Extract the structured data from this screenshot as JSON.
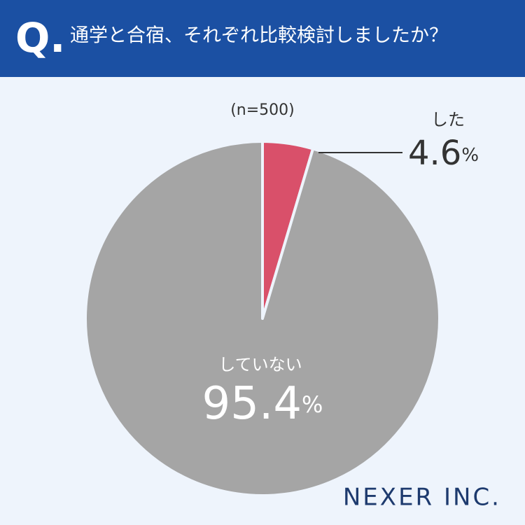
{
  "chart_data": {
    "type": "pie",
    "prefix": "Q.",
    "title": "通学と合宿、それぞれ比較検討しましたか？",
    "subtitle": "(n=500)",
    "categories": [
      "した",
      "していない"
    ],
    "values": [
      4.6,
      95.4
    ],
    "value_labels": [
      "4.6%",
      "95.4%"
    ],
    "colors": [
      "#d9506a",
      "#a5a5a5"
    ],
    "brand": "NEXER INC."
  }
}
